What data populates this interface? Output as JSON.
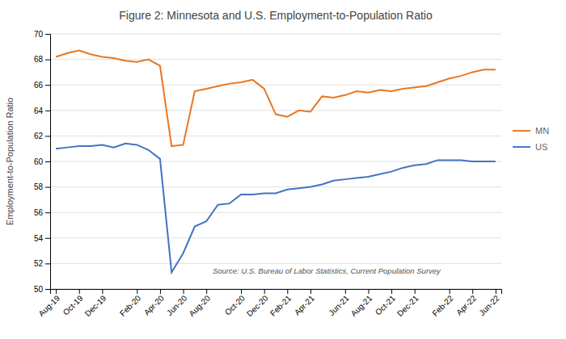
{
  "chart_data": {
    "type": "line",
    "title": "Figure 2:  Minnesota and U.S. Employment-to-Population Ratio",
    "y_label": "Employment-to-Population Ratio",
    "annotations": [
      "Source: U.S. Bureau of Labor Statistics, Current Population Survey"
    ],
    "categories": [
      "Aug-19",
      null,
      "Oct-19",
      null,
      "Dec-19",
      null,
      null,
      "Feb-20",
      null,
      "Apr-20",
      null,
      "Jun-20",
      null,
      "Aug-20",
      null,
      null,
      "Oct-20",
      null,
      "Dec-20",
      null,
      "Feb-21",
      null,
      "Apr-21",
      null,
      null,
      "Jun-21",
      null,
      "Aug-21",
      null,
      "Oct-21",
      null,
      "Dec-21",
      null,
      null,
      "Feb-22",
      null,
      "Apr-22",
      null,
      "Jun-22"
    ],
    "series": [
      {
        "name": "MN",
        "color": "#E87722",
        "values": [
          68.2,
          68.5,
          68.7,
          68.4,
          68.2,
          68.1,
          67.9,
          67.8,
          68.0,
          67.5,
          61.2,
          61.3,
          65.5,
          65.7,
          65.9,
          66.1,
          66.2,
          66.4,
          65.7,
          63.7,
          63.5,
          64.0,
          63.9,
          65.1,
          65.0,
          65.2,
          65.5,
          65.4,
          65.6,
          65.5,
          65.7,
          65.8,
          65.9,
          66.2,
          66.5,
          66.7,
          67.0,
          67.2,
          67.2
        ]
      },
      {
        "name": "US",
        "color": "#4472C4",
        "values": [
          61.0,
          61.1,
          61.2,
          61.2,
          61.3,
          61.1,
          61.4,
          61.3,
          60.9,
          60.2,
          51.3,
          52.8,
          54.9,
          55.3,
          56.6,
          56.7,
          57.4,
          57.4,
          57.5,
          57.5,
          57.8,
          57.9,
          58.0,
          58.2,
          58.5,
          58.6,
          58.7,
          58.8,
          59.0,
          59.2,
          59.5,
          59.7,
          59.8,
          60.1,
          60.1,
          60.1,
          60.0,
          60.0,
          60.0
        ]
      }
    ],
    "ylim": [
      50,
      70
    ],
    "yticks": [
      50,
      52,
      54,
      56,
      58,
      60,
      62,
      64,
      66,
      68,
      70
    ],
    "grid": true,
    "legend": "right"
  }
}
